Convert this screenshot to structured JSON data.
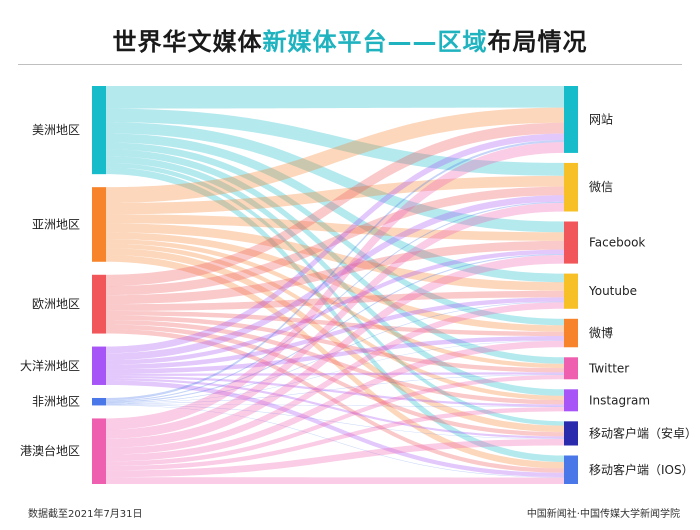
{
  "title": {
    "part1": "世界华文媒体",
    "part2": "新媒体平台——区域",
    "part3": "布局情况"
  },
  "footer": {
    "left": "数据截至2021年7月31日",
    "right": "中国新闻社·中国传媒大学新闻学院"
  },
  "chart_data": {
    "type": "sankey",
    "sources": [
      {
        "name": "美洲地区",
        "color": "#17bccb"
      },
      {
        "name": "亚洲地区",
        "color": "#f7832a"
      },
      {
        "name": "欧洲地区",
        "color": "#f0565a"
      },
      {
        "name": "大洋洲地区",
        "color": "#a855f7"
      },
      {
        "name": "非洲地区",
        "color": "#4a78e8"
      },
      {
        "name": "港澳台地区",
        "color": "#ef5fb0"
      }
    ],
    "targets": [
      {
        "name": "网站",
        "color": "#17bccb"
      },
      {
        "name": "微信",
        "color": "#f6c026"
      },
      {
        "name": "Facebook",
        "color": "#f0565a"
      },
      {
        "name": "Youtube",
        "color": "#f6c026"
      },
      {
        "name": "微博",
        "color": "#f7832a"
      },
      {
        "name": "Twitter",
        "color": "#ef5fb0"
      },
      {
        "name": "Instagram",
        "color": "#a855f7"
      },
      {
        "name": "移动客户端（安卓）",
        "color": "#2a2aad"
      },
      {
        "name": "移动客户端（IOS）",
        "color": "#4a78e8"
      }
    ],
    "flows": [
      [
        10,
        6,
        5,
        4,
        3,
        3,
        3,
        2,
        3
      ],
      [
        7,
        5,
        4,
        4,
        3,
        2,
        2,
        3,
        3
      ],
      [
        5,
        4,
        4,
        3,
        2,
        2,
        2,
        2,
        2
      ],
      [
        3,
        3,
        2,
        2,
        2,
        1,
        1,
        1,
        2
      ],
      [
        1,
        0.5,
        0.5,
        0.3,
        0.2,
        0.2,
        0.2,
        0.2,
        0.2
      ],
      [
        5,
        4,
        4,
        3,
        3,
        2,
        2,
        3,
        3
      ]
    ]
  }
}
